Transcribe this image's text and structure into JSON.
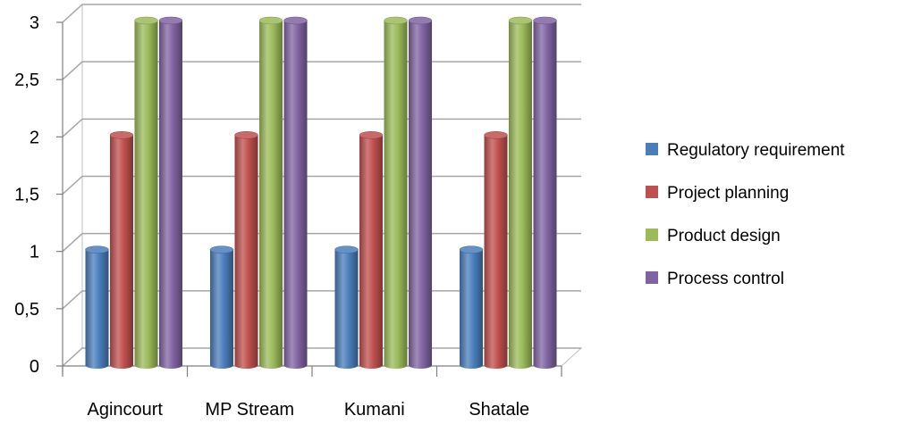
{
  "chart_data": {
    "type": "bar",
    "categories": [
      "Agincourt",
      "MP Stream",
      "Kumani",
      "Shatale"
    ],
    "series": [
      {
        "name": "Regulatory requirement",
        "color": "#4a7ebb",
        "values": [
          1,
          1,
          1,
          1
        ]
      },
      {
        "name": "Project planning",
        "color": "#c0504d",
        "values": [
          2,
          2,
          2,
          2
        ]
      },
      {
        "name": "Product design",
        "color": "#9bbb59",
        "values": [
          3,
          3,
          3,
          3
        ]
      },
      {
        "name": "Process control",
        "color": "#8064a2",
        "values": [
          3,
          3,
          3,
          3
        ]
      }
    ],
    "yticks": [
      "0",
      "0,5",
      "1",
      "1,5",
      "2",
      "2,5",
      "3"
    ],
    "ylim": [
      0,
      3
    ],
    "grid": true,
    "legend_position": "right",
    "style": "3d-cylinder"
  }
}
